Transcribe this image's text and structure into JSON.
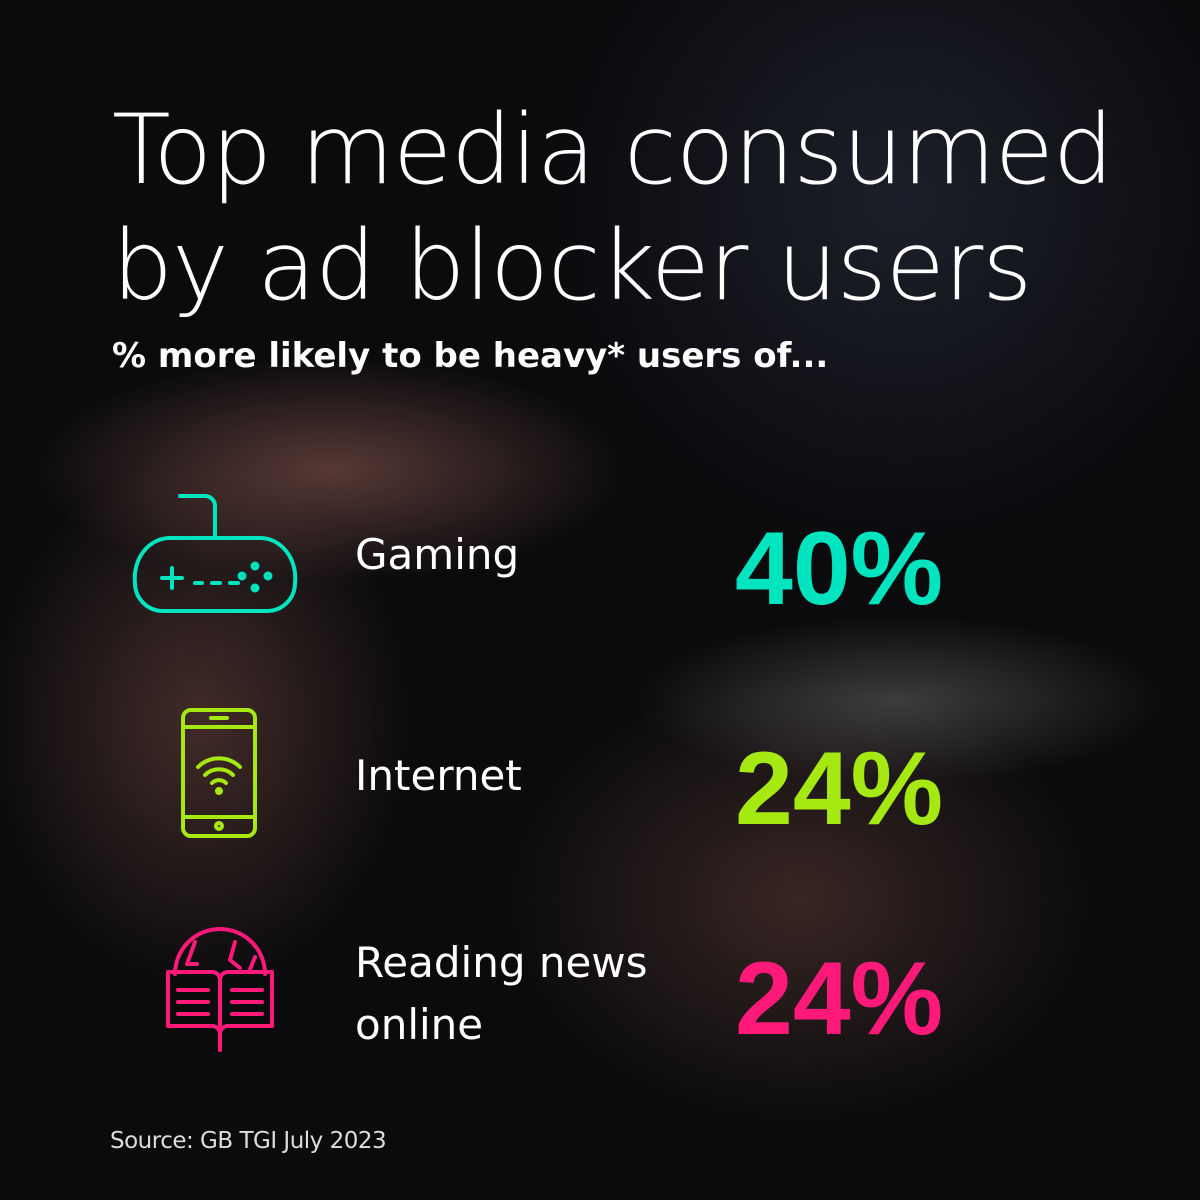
{
  "header": {
    "title": "Top media consumed by ad blocker users",
    "subtitle": "% more likely to be heavy* users of..."
  },
  "items": [
    {
      "label": "Gaming",
      "value": "40%"
    },
    {
      "label": "Internet",
      "value": "24%"
    },
    {
      "label": "Reading news online",
      "value": "24%"
    }
  ],
  "footer": {
    "source": "Source: GB TGI July 2023"
  }
}
